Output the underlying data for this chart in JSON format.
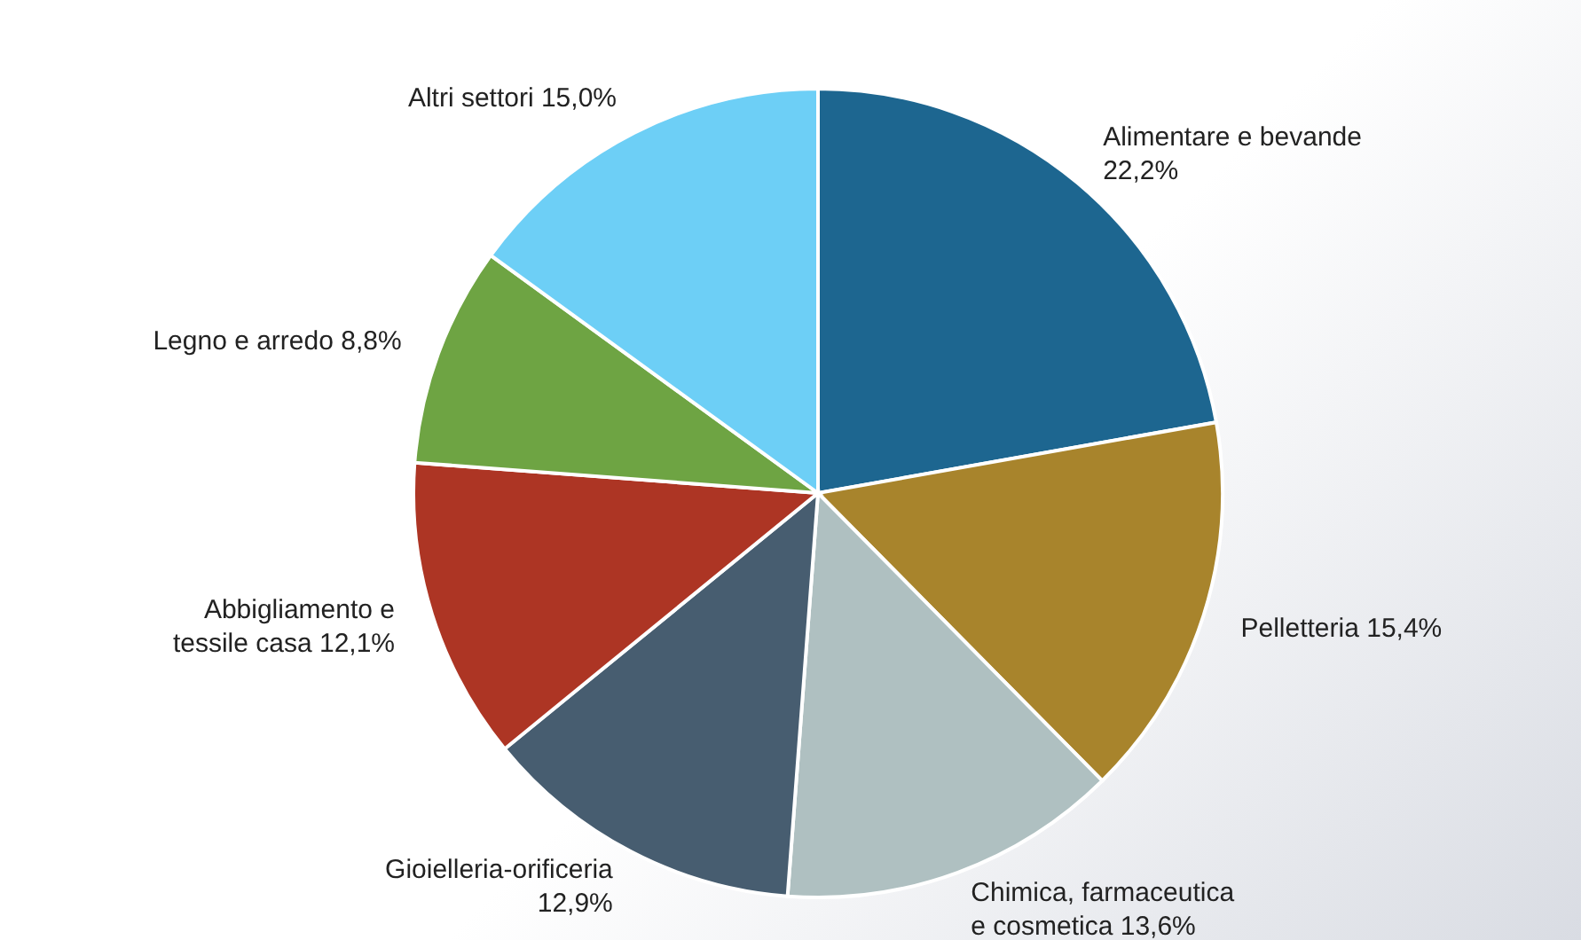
{
  "chart_data": {
    "type": "pie",
    "categories": [
      "Alimentare e bevande",
      "Pelletteria",
      "Chimica, farmaceutica e cosmetica",
      "Gioielleria-orificeria",
      "Abbigliamento e tessile casa",
      "Legno e arredo",
      "Altri settori"
    ],
    "values": [
      22.2,
      15.4,
      13.6,
      12.9,
      12.1,
      8.8,
      15.0
    ],
    "value_labels": [
      "22,2%",
      "15,4%",
      "13,6%",
      "12,9%",
      "12,1%",
      "8,8%",
      "15,0%"
    ],
    "colors": [
      "#1d6690",
      "#a8842c",
      "#afc0c1",
      "#475d70",
      "#ad3524",
      "#6ea443",
      "#6dcff6"
    ],
    "legend": false
  }
}
